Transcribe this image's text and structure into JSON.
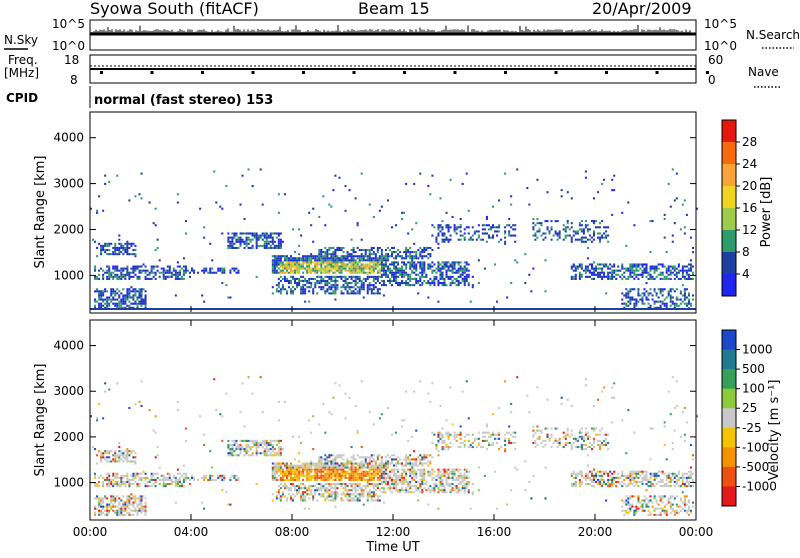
{
  "header": {
    "station": "Syowa South (fitACF)",
    "beam": "Beam 15",
    "date": "20/Apr/2009"
  },
  "panels": {
    "nsky": {
      "left_label": "N.Sky",
      "right_label": "N.Search",
      "tick_top": "10^5",
      "tick_bottom": "10^0"
    },
    "freq": {
      "left_label_1": "Freq.",
      "left_label_2": "[MHz]",
      "right_label": "Nave",
      "left_ticks": [
        "18",
        "8"
      ],
      "right_ticks": [
        "60",
        "0"
      ]
    },
    "cpid": {
      "label": "CPID",
      "text": "normal (fast stereo) 153"
    }
  },
  "chart_data": [
    {
      "type": "heatmap",
      "name": "power",
      "ylabel": "Slant Range [km]",
      "xlabel": "",
      "ylim": [
        180,
        4560
      ],
      "yticks": [
        1000,
        2000,
        3000,
        4000
      ],
      "colorbar": {
        "label": "Power [dB]",
        "ticks": [
          "28",
          "24",
          "20",
          "16",
          "12",
          "8",
          "4"
        ],
        "colors": [
          "#e8170b",
          "#f86a0c",
          "#f9a33a",
          "#f1d41f",
          "#9ecb4a",
          "#2f9a6a",
          "#1c3fa0",
          "#1f24ee"
        ]
      }
    },
    {
      "type": "heatmap",
      "name": "velocity",
      "ylabel": "Slant Range [km]",
      "xlabel": "Time UT",
      "ylim": [
        180,
        4560
      ],
      "yticks": [
        1000,
        2000,
        3000,
        4000
      ],
      "xticks": [
        "00:00",
        "04:00",
        "08:00",
        "12:00",
        "16:00",
        "20:00",
        "00:00"
      ],
      "colorbar": {
        "label": "Velocity [m s⁻¹]",
        "ticks": [
          "1000",
          "500",
          "100",
          "25",
          "-25",
          "-100",
          "-500",
          "-1000"
        ],
        "colors": [
          "#1a48c8",
          "#1d7a8f",
          "#36a05a",
          "#8ccc3a",
          "#c8c8c8",
          "#f5c400",
          "#f59200",
          "#f05010",
          "#e41a1a"
        ]
      }
    }
  ]
}
